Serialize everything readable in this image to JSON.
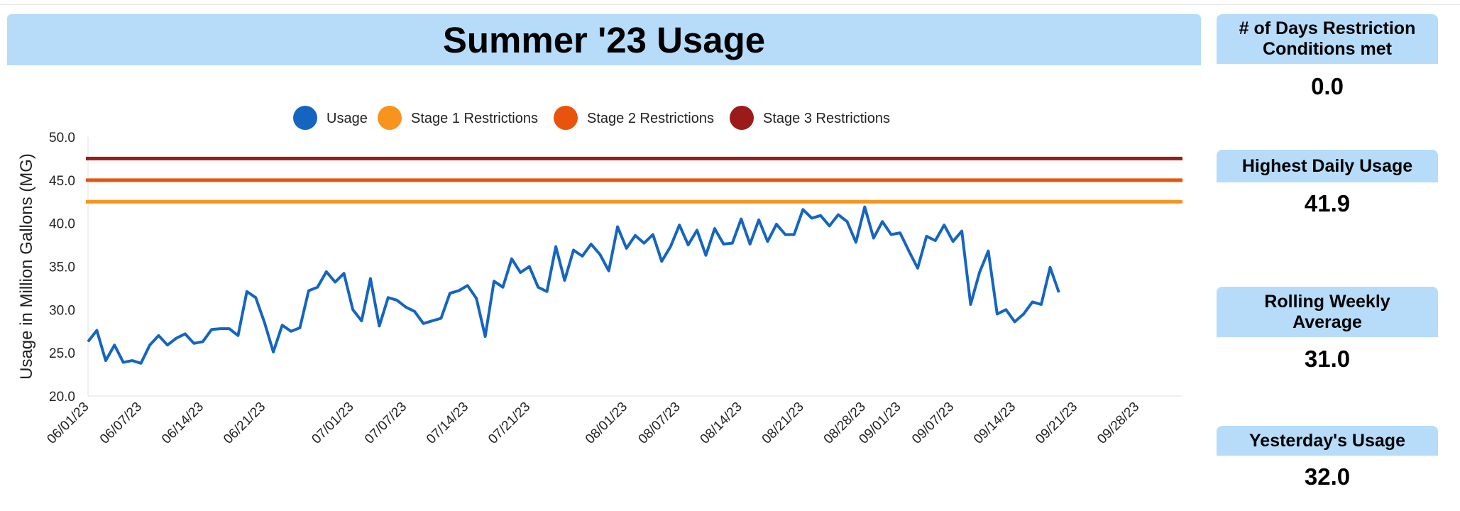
{
  "header": {
    "title": "Summer '23 Usage"
  },
  "kpis": [
    {
      "label": "# of Days Restriction Conditions met",
      "value": "0.0"
    },
    {
      "label": "Highest Daily Usage",
      "value": "41.9"
    },
    {
      "label": "Rolling Weekly Average",
      "value": "31.0"
    },
    {
      "label": "Yesterday's Usage",
      "value": "32.0"
    }
  ],
  "colors": {
    "header_bg": "#b6dcfa",
    "usage": "#1565c0",
    "stage1": "#f7941d",
    "stage2": "#e8530e",
    "stage3": "#9b1b1b"
  },
  "chart_data": {
    "type": "line",
    "title": "",
    "xlabel": "",
    "ylabel": "Usage in Million Gallons (MG)",
    "ylim": [
      20,
      50
    ],
    "yticks": [
      "20.0",
      "25.0",
      "30.0",
      "35.0",
      "40.0",
      "45.0",
      "50.0"
    ],
    "xlim": [
      "2023-06-01",
      "2023-10-03"
    ],
    "xticks": [
      "06/01/23",
      "06/07/23",
      "06/14/23",
      "06/21/23",
      "07/01/23",
      "07/07/23",
      "07/14/23",
      "07/21/23",
      "08/01/23",
      "08/07/23",
      "08/14/23",
      "08/21/23",
      "08/28/23",
      "09/01/23",
      "09/07/23",
      "09/14/23",
      "09/21/23",
      "09/28/23"
    ],
    "xtick_dates": [
      "2023-06-01",
      "2023-06-07",
      "2023-06-14",
      "2023-06-21",
      "2023-07-01",
      "2023-07-07",
      "2023-07-14",
      "2023-07-21",
      "2023-08-01",
      "2023-08-07",
      "2023-08-14",
      "2023-08-21",
      "2023-08-28",
      "2023-09-01",
      "2023-09-07",
      "2023-09-14",
      "2023-09-21",
      "2023-09-28"
    ],
    "grid": false,
    "legend_position": "top-center",
    "series": [
      {
        "name": "Usage",
        "start_date": "2023-06-01",
        "values": [
          26.3,
          27.6,
          24.1,
          25.9,
          23.9,
          24.1,
          23.8,
          25.9,
          27.0,
          25.9,
          26.7,
          27.2,
          26.1,
          26.3,
          27.7,
          27.8,
          27.8,
          27.0,
          32.1,
          31.4,
          28.5,
          25.1,
          28.2,
          27.5,
          27.9,
          32.2,
          32.6,
          34.4,
          33.2,
          34.2,
          30.0,
          28.7,
          33.6,
          28.1,
          31.4,
          31.1,
          30.3,
          29.8,
          28.4,
          28.7,
          29.0,
          31.9,
          32.2,
          32.8,
          31.3,
          26.9,
          33.3,
          32.6,
          35.9,
          34.3,
          35.0,
          32.6,
          32.1,
          37.3,
          33.4,
          36.9,
          36.2,
          37.6,
          36.4,
          34.5,
          39.6,
          37.1,
          38.6,
          37.7,
          38.7,
          35.6,
          37.3,
          39.8,
          37.5,
          39.2,
          36.3,
          39.4,
          37.6,
          37.7,
          40.5,
          37.6,
          40.4,
          37.9,
          39.9,
          38.7,
          38.7,
          41.6,
          40.6,
          40.9,
          39.7,
          41.0,
          40.2,
          37.8,
          41.9,
          38.3,
          40.2,
          38.7,
          38.9,
          36.8,
          34.8,
          38.5,
          38.0,
          39.8,
          37.9,
          39.1,
          30.6,
          34.3,
          36.8,
          29.5,
          30.0,
          28.6,
          29.5,
          30.9,
          30.6,
          34.9,
          32.0
        ]
      },
      {
        "name": "Stage 1 Restrictions",
        "value": 42.5
      },
      {
        "name": "Stage 2 Restrictions",
        "value": 45.0
      },
      {
        "name": "Stage 3 Restrictions",
        "value": 47.5
      }
    ]
  }
}
